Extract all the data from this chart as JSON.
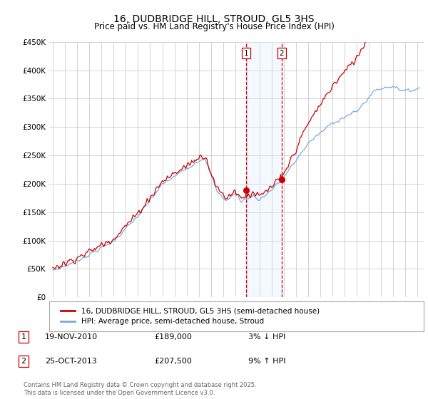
{
  "title": "16, DUDBRIDGE HILL, STROUD, GL5 3HS",
  "subtitle": "Price paid vs. HM Land Registry's House Price Index (HPI)",
  "ylabel_ticks": [
    "£0",
    "£50K",
    "£100K",
    "£150K",
    "£200K",
    "£250K",
    "£300K",
    "£350K",
    "£400K",
    "£450K"
  ],
  "ylim": [
    0,
    450000
  ],
  "xlim_start": 1994.7,
  "xlim_end": 2025.5,
  "purchase1_date": 2010.89,
  "purchase1_price": 189000,
  "purchase1_label": "1",
  "purchase1_text": "19-NOV-2010",
  "purchase1_pct": "3% ↓ HPI",
  "purchase2_date": 2013.82,
  "purchase2_price": 207500,
  "purchase2_label": "2",
  "purchase2_text": "25-OCT-2013",
  "purchase2_pct": "9% ↑ HPI",
  "legend_line1": "16, DUDBRIDGE HILL, STROUD, GL5 3HS (semi-detached house)",
  "legend_line2": "HPI: Average price, semi-detached house, Stroud",
  "footnote": "Contains HM Land Registry data © Crown copyright and database right 2025.\nThis data is licensed under the Open Government Licence v3.0.",
  "line_color_red": "#cc0000",
  "line_color_blue": "#7aaadd",
  "shade_color": "#ddeeff",
  "grid_color": "#cccccc",
  "purchase_vline_color": "#cc0000",
  "background_color": "#ffffff",
  "label_box_color": "#cc0000",
  "row1_date": "19-NOV-2010",
  "row1_price": "£189,000",
  "row1_pct": "3% ↓ HPI",
  "row2_date": "25-OCT-2013",
  "row2_price": "£207,500",
  "row2_pct": "9% ↑ HPI"
}
